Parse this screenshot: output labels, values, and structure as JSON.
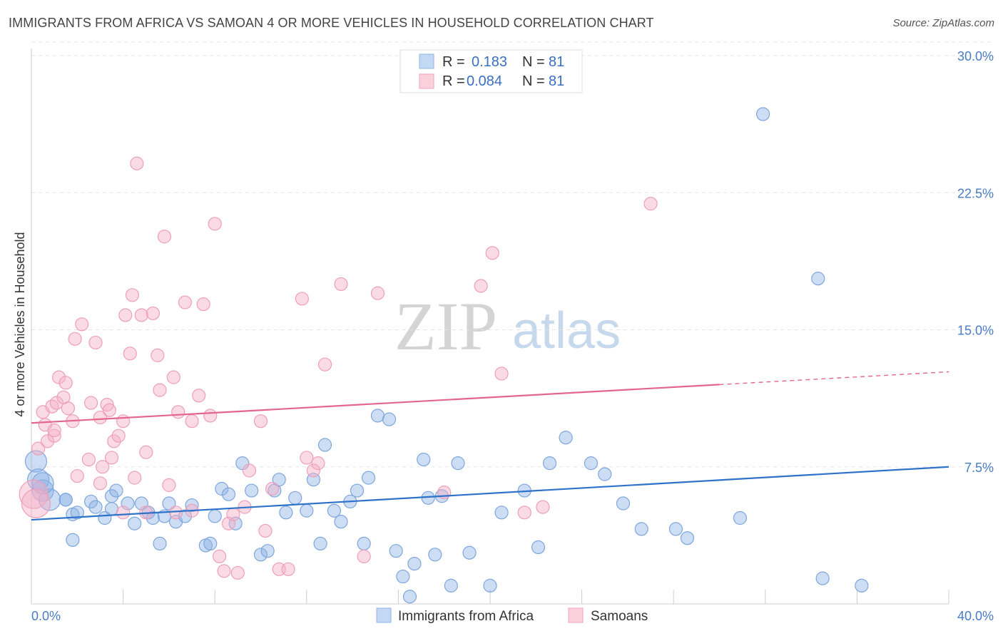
{
  "title": "IMMIGRANTS FROM AFRICA VS SAMOAN 4 OR MORE VEHICLES IN HOUSEHOLD CORRELATION CHART",
  "source": "Source: ZipAtlas.com",
  "watermark": {
    "zip": "ZIP",
    "atlas": "atlas"
  },
  "legend_stats": [
    {
      "r_label": "R =",
      "r_value": "0.183",
      "n_label": "N =",
      "n_value": "81"
    },
    {
      "r_label": "R =",
      "r_value": "0.084",
      "n_label": "N =",
      "n_value": "81"
    }
  ],
  "chart_data": {
    "type": "scatter",
    "title": "IMMIGRANTS FROM AFRICA VS SAMOAN 4 OR MORE VEHICLES IN HOUSEHOLD CORRELATION CHART",
    "xlabel": "",
    "ylabel": "4 or more Vehicles in Household",
    "xlim": [
      0,
      40
    ],
    "ylim": [
      0,
      30
    ],
    "x_tick_labels": [
      "0.0%",
      "40.0%"
    ],
    "y_tick_labels": [
      "30.0%",
      "22.5%",
      "15.0%",
      "7.5%"
    ],
    "y_ticks": [
      30,
      22.5,
      15,
      7.5
    ],
    "grid": true,
    "legend_position": "top-center",
    "series": [
      {
        "name": "Immigrants from Africa",
        "color": "#8fb4e6",
        "trend_color": "#2e72c9",
        "trend": {
          "x": [
            0,
            40
          ],
          "y": [
            4.6,
            7.5
          ]
        },
        "points": [
          [
            0.2,
            7.8
          ],
          [
            0.3,
            6.8
          ],
          [
            0.5,
            6.2
          ],
          [
            0.8,
            5.7
          ],
          [
            1.5,
            5.7
          ],
          [
            1.8,
            4.9
          ],
          [
            2.0,
            5.0
          ],
          [
            1.8,
            3.5
          ],
          [
            2.6,
            5.6
          ],
          [
            2.8,
            5.3
          ],
          [
            3.2,
            4.7
          ],
          [
            3.5,
            5.2
          ],
          [
            3.5,
            5.9
          ],
          [
            3.7,
            6.2
          ],
          [
            4.2,
            5.5
          ],
          [
            4.5,
            4.4
          ],
          [
            4.8,
            5.5
          ],
          [
            5.1,
            5.0
          ],
          [
            5.3,
            4.7
          ],
          [
            5.6,
            3.3
          ],
          [
            5.8,
            4.8
          ],
          [
            6.0,
            5.5
          ],
          [
            6.3,
            4.5
          ],
          [
            6.7,
            4.8
          ],
          [
            7.0,
            5.4
          ],
          [
            7.6,
            3.2
          ],
          [
            7.8,
            3.3
          ],
          [
            8.0,
            4.8
          ],
          [
            8.3,
            6.3
          ],
          [
            8.6,
            6.0
          ],
          [
            8.9,
            4.4
          ],
          [
            9.2,
            7.7
          ],
          [
            9.6,
            6.2
          ],
          [
            10.0,
            2.7
          ],
          [
            10.3,
            2.9
          ],
          [
            10.6,
            6.2
          ],
          [
            10.8,
            6.8
          ],
          [
            11.1,
            5.0
          ],
          [
            11.5,
            5.8
          ],
          [
            12.0,
            5.1
          ],
          [
            12.3,
            6.8
          ],
          [
            12.6,
            3.3
          ],
          [
            12.8,
            8.7
          ],
          [
            13.2,
            5.1
          ],
          [
            13.5,
            4.5
          ],
          [
            13.9,
            5.6
          ],
          [
            14.2,
            6.2
          ],
          [
            14.5,
            3.3
          ],
          [
            14.7,
            6.9
          ],
          [
            15.1,
            10.3
          ],
          [
            15.6,
            10.1
          ],
          [
            15.9,
            2.9
          ],
          [
            16.2,
            1.5
          ],
          [
            16.5,
            0.4
          ],
          [
            16.7,
            2.2
          ],
          [
            17.1,
            7.9
          ],
          [
            17.3,
            5.8
          ],
          [
            17.6,
            2.7
          ],
          [
            17.9,
            5.9
          ],
          [
            18.3,
            1.0
          ],
          [
            18.6,
            7.7
          ],
          [
            19.1,
            2.8
          ],
          [
            20.0,
            1.0
          ],
          [
            20.5,
            5.0
          ],
          [
            21.5,
            6.2
          ],
          [
            22.1,
            3.1
          ],
          [
            22.6,
            7.7
          ],
          [
            23.3,
            9.1
          ],
          [
            24.4,
            7.7
          ],
          [
            25.0,
            7.1
          ],
          [
            25.8,
            5.5
          ],
          [
            26.6,
            4.1
          ],
          [
            28.1,
            4.1
          ],
          [
            28.6,
            3.6
          ],
          [
            30.9,
            4.7
          ],
          [
            31.9,
            26.8
          ],
          [
            34.3,
            17.8
          ],
          [
            34.5,
            1.4
          ],
          [
            36.2,
            1.0
          ],
          [
            1.5,
            5.7
          ],
          [
            0.5,
            6.6
          ]
        ]
      },
      {
        "name": "Samoans",
        "color": "#f5b0c5",
        "trend_color": "#e3668f",
        "trend": {
          "x": [
            0,
            30
          ],
          "y": [
            9.9,
            12.0
          ]
        },
        "trend_dashed": {
          "x": [
            30,
            40
          ],
          "y": [
            12.0,
            12.7
          ]
        },
        "points": [
          [
            0.1,
            6.0
          ],
          [
            0.3,
            8.5
          ],
          [
            0.5,
            10.5
          ],
          [
            0.6,
            9.8
          ],
          [
            0.7,
            8.9
          ],
          [
            0.9,
            10.8
          ],
          [
            1.0,
            9.2
          ],
          [
            1.1,
            11.0
          ],
          [
            1.2,
            12.4
          ],
          [
            1.4,
            11.3
          ],
          [
            1.5,
            12.1
          ],
          [
            1.6,
            10.7
          ],
          [
            1.8,
            10.0
          ],
          [
            1.9,
            14.5
          ],
          [
            2.2,
            15.3
          ],
          [
            2.5,
            7.9
          ],
          [
            2.6,
            11.0
          ],
          [
            2.8,
            14.3
          ],
          [
            3.0,
            10.2
          ],
          [
            3.1,
            7.5
          ],
          [
            3.3,
            10.9
          ],
          [
            3.4,
            10.6
          ],
          [
            3.5,
            8.0
          ],
          [
            3.6,
            8.9
          ],
          [
            3.8,
            9.2
          ],
          [
            4.0,
            10.0
          ],
          [
            4.1,
            15.8
          ],
          [
            4.3,
            13.7
          ],
          [
            4.4,
            16.9
          ],
          [
            4.5,
            6.9
          ],
          [
            4.6,
            24.1
          ],
          [
            4.8,
            15.8
          ],
          [
            5.0,
            8.3
          ],
          [
            5.3,
            15.9
          ],
          [
            5.5,
            13.6
          ],
          [
            5.6,
            11.7
          ],
          [
            5.8,
            20.1
          ],
          [
            6.0,
            6.5
          ],
          [
            6.2,
            12.4
          ],
          [
            6.4,
            10.5
          ],
          [
            6.7,
            16.5
          ],
          [
            7.0,
            10.0
          ],
          [
            7.3,
            11.4
          ],
          [
            7.5,
            16.4
          ],
          [
            7.8,
            10.3
          ],
          [
            8.0,
            20.8
          ],
          [
            8.2,
            2.6
          ],
          [
            8.4,
            1.8
          ],
          [
            8.6,
            4.4
          ],
          [
            9.0,
            1.7
          ],
          [
            9.3,
            5.3
          ],
          [
            10.0,
            10.0
          ],
          [
            10.5,
            6.3
          ],
          [
            10.8,
            1.9
          ],
          [
            11.2,
            1.9
          ],
          [
            11.8,
            16.7
          ],
          [
            12.0,
            8.0
          ],
          [
            12.3,
            7.3
          ],
          [
            12.8,
            13.1
          ],
          [
            13.5,
            17.5
          ],
          [
            14.5,
            2.6
          ],
          [
            15.1,
            17.0
          ],
          [
            18.0,
            6.1
          ],
          [
            19.6,
            17.4
          ],
          [
            20.1,
            19.2
          ],
          [
            20.5,
            12.6
          ],
          [
            21.5,
            5.0
          ],
          [
            22.3,
            5.3
          ],
          [
            27.0,
            21.9
          ],
          [
            8.8,
            4.9
          ],
          [
            3.0,
            6.6
          ],
          [
            5.0,
            5.0
          ],
          [
            1.0,
            9.5
          ],
          [
            2.0,
            7.0
          ],
          [
            6.3,
            5.0
          ],
          [
            10.2,
            4.0
          ],
          [
            0.2,
            5.5
          ],
          [
            4.0,
            5.0
          ],
          [
            12.5,
            7.7
          ],
          [
            7.0,
            5.1
          ],
          [
            9.5,
            7.3
          ]
        ]
      }
    ]
  },
  "legend_bottom": [
    "Immigrants from Africa",
    "Samoans"
  ]
}
